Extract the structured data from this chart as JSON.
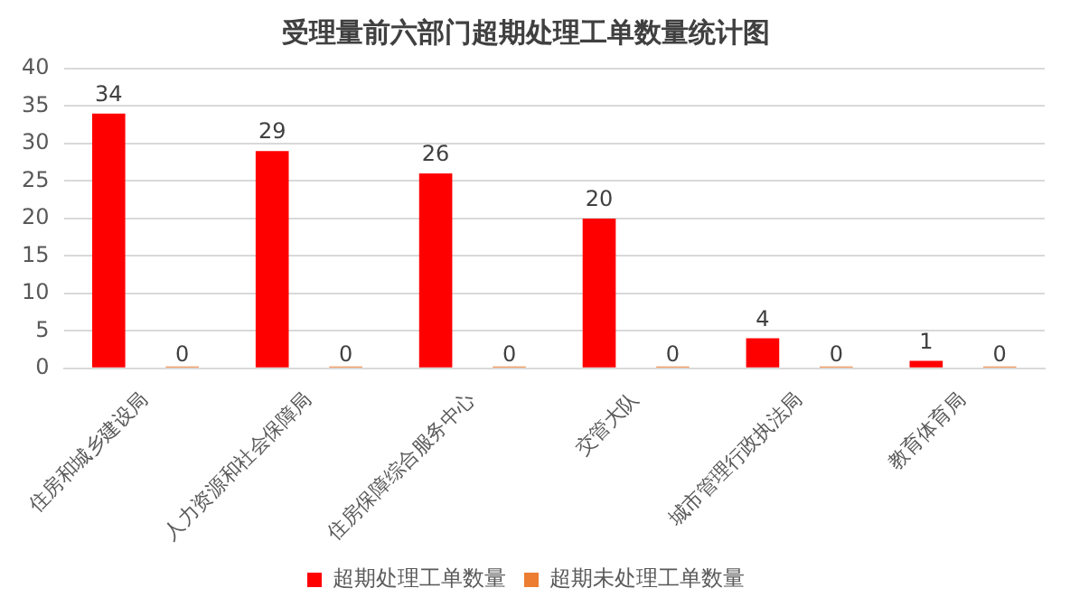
{
  "chart_data": {
    "type": "bar",
    "title": "受理量前六部门超期处理工单数量统计图",
    "categories": [
      "住房和城乡建设局",
      "人力资源和社会保障局",
      "住房保障综合服务中心",
      "交管大队",
      "城市管理行政执法局",
      "教育体育局"
    ],
    "series": [
      {
        "name": "超期处理工单数量",
        "color": "#ff0000",
        "values": [
          34,
          29,
          26,
          20,
          4,
          1
        ]
      },
      {
        "name": "超期未处理工单数量",
        "color": "#ed7d31",
        "values": [
          0,
          0,
          0,
          0,
          0,
          0
        ]
      }
    ],
    "ylim": [
      0,
      40
    ],
    "yticks": [
      0,
      5,
      10,
      15,
      20,
      25,
      30,
      35,
      40
    ],
    "grid": "y",
    "legend": "bottom",
    "data_labels": true
  }
}
